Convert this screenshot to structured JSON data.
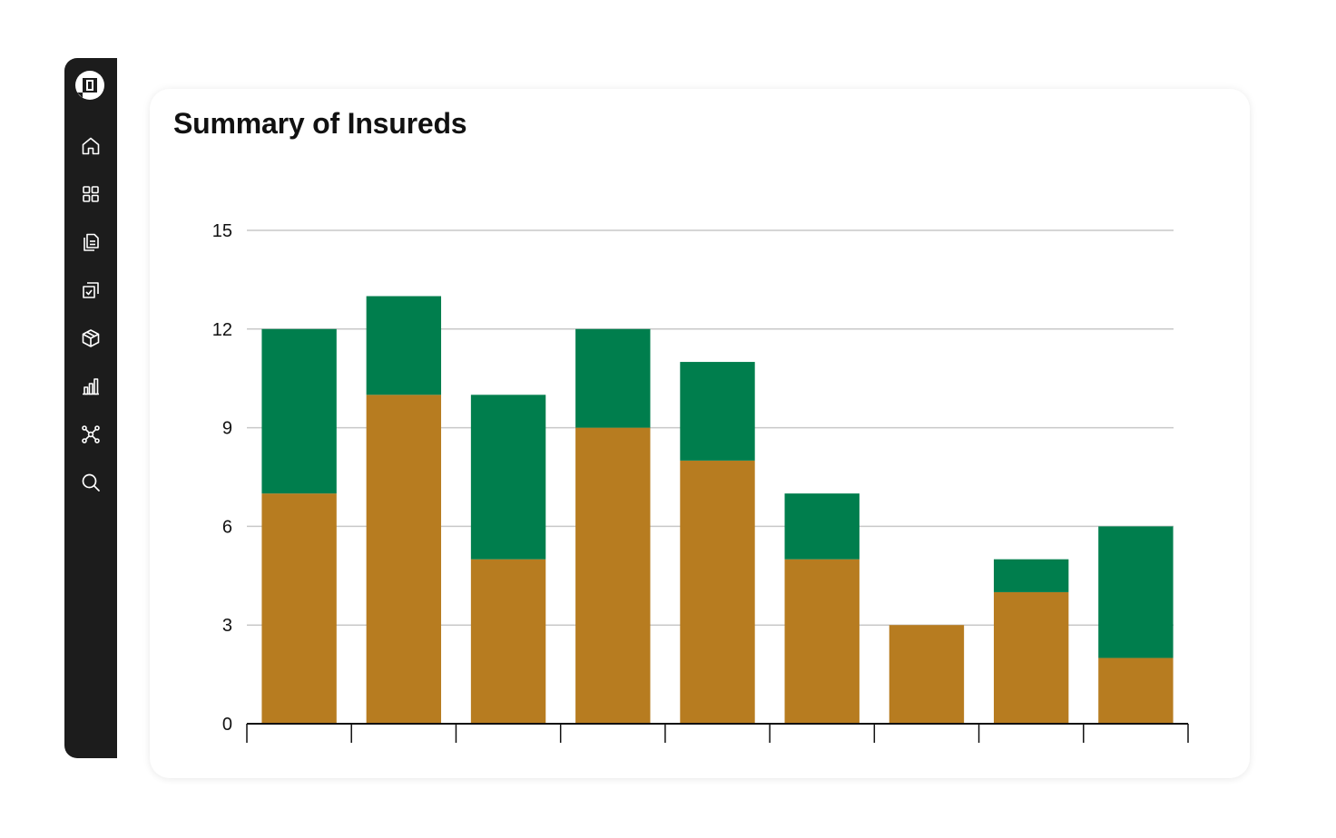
{
  "sidebar": {
    "items": [
      {
        "icon": "home-icon"
      },
      {
        "icon": "grid-icon"
      },
      {
        "icon": "documents-icon"
      },
      {
        "icon": "approve-icon"
      },
      {
        "icon": "box-icon"
      },
      {
        "icon": "bar-chart-icon"
      },
      {
        "icon": "network-icon"
      },
      {
        "icon": "search-icon"
      }
    ]
  },
  "card": {
    "title": "Summary of Insureds"
  },
  "colors": {
    "sidebar_bg": "#1c1c1c",
    "series_bottom": "#b77c20",
    "series_top": "#007e4d",
    "gridline": "#c8c8c8",
    "axis": "#111111"
  },
  "chart_data": {
    "type": "bar",
    "stacked": true,
    "title": "Summary of Insureds",
    "xlabel": "",
    "ylabel": "",
    "ylim": [
      0,
      15
    ],
    "yticks": [
      0,
      3,
      6,
      9,
      12,
      15
    ],
    "grid": true,
    "legend": "none",
    "categories": [
      "",
      "",
      "",
      "",
      "",
      "",
      "",
      "",
      ""
    ],
    "series": [
      {
        "color": "#b77c20",
        "values": [
          7,
          10,
          5,
          9,
          8,
          5,
          3,
          4,
          2
        ]
      },
      {
        "color": "#007e4d",
        "values": [
          5,
          3,
          5,
          3,
          3,
          2,
          0,
          1,
          4
        ]
      }
    ]
  }
}
